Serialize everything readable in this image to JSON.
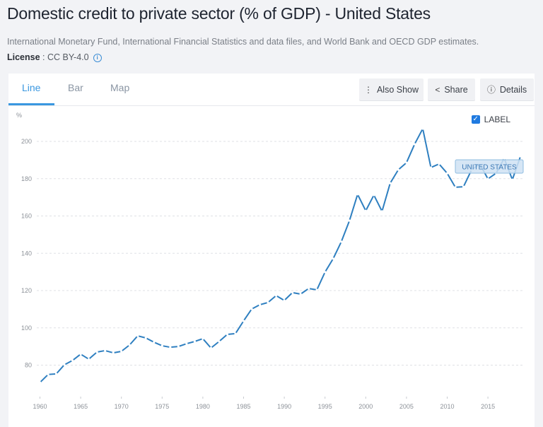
{
  "page": {
    "title": "Domestic credit to private sector (% of GDP) - United States",
    "source": "International Monetary Fund, International Financial Statistics and data files, and World Bank and OECD GDP estimates.",
    "license_label": "License",
    "license_sep": " : ",
    "license_value": "CC BY-4.0",
    "license_info_icon": "i"
  },
  "tabs": [
    {
      "label": "Line",
      "active": true
    },
    {
      "label": "Bar",
      "active": false
    },
    {
      "label": "Map",
      "active": false
    }
  ],
  "toolbar": {
    "also_show_icon": "⋮",
    "also_show": "Also Show",
    "share_icon": "<",
    "share": "Share",
    "details_icon": "ⓘ",
    "details": "Details"
  },
  "label_toggle": {
    "label": "LABEL",
    "checked": true,
    "check_glyph": "✓"
  },
  "colors": {
    "series": "#2e7fc0",
    "accent": "#3a97e0",
    "label_bg": "#cfe2f3",
    "label_border": "#8fbce0",
    "label_text": "#3b78b5"
  },
  "chart_data": {
    "type": "line",
    "title": "Domestic credit to private sector (% of GDP) - United States",
    "xlabel": "",
    "ylabel": "%",
    "ylim": [
      60,
      210
    ],
    "yticks": [
      80,
      100,
      120,
      140,
      160,
      180,
      200
    ],
    "xticks": [
      1960,
      1965,
      1970,
      1975,
      1980,
      1985,
      1990,
      1995,
      2000,
      2005,
      2010,
      2015
    ],
    "grid": true,
    "series": [
      {
        "name": "UNITED STATES",
        "x": [
          1960,
          1961,
          1962,
          1963,
          1964,
          1965,
          1966,
          1967,
          1968,
          1969,
          1970,
          1971,
          1972,
          1973,
          1974,
          1975,
          1976,
          1977,
          1978,
          1979,
          1980,
          1981,
          1982,
          1983,
          1984,
          1985,
          1986,
          1987,
          1988,
          1989,
          1990,
          1991,
          1992,
          1993,
          1994,
          1995,
          1996,
          1997,
          1998,
          1999,
          2000,
          2001,
          2002,
          2003,
          2004,
          2005,
          2006,
          2007,
          2008,
          2009,
          2010,
          2011,
          2012,
          2013,
          2014,
          2015,
          2016,
          2017,
          2018,
          2019
        ],
        "values": [
          70.7,
          75.0,
          75.3,
          80.2,
          82.5,
          85.9,
          83.2,
          87.0,
          87.8,
          86.6,
          87.4,
          90.8,
          95.7,
          94.6,
          92.3,
          90.4,
          89.6,
          90.0,
          91.5,
          92.7,
          94.2,
          89.2,
          92.7,
          96.5,
          96.9,
          103.7,
          110.1,
          112.4,
          113.6,
          117.3,
          114.7,
          118.9,
          118.1,
          121.1,
          120.4,
          129.9,
          137.1,
          146.2,
          157.5,
          171.6,
          162.8,
          171.2,
          162.5,
          177.6,
          184.8,
          188.6,
          198.5,
          206.8,
          186.0,
          187.9,
          182.9,
          175.4,
          175.7,
          184.8,
          187.9,
          179.9,
          182.9,
          190.9,
          179.5,
          192.0
        ]
      }
    ],
    "series_label": "UNITED STATES",
    "legend": "inline-label near end of series"
  }
}
